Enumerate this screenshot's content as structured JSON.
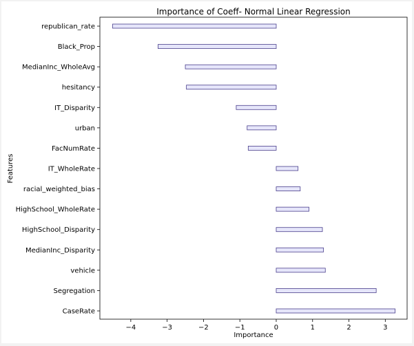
{
  "chart_data": {
    "type": "bar",
    "orientation": "horizontal",
    "title": "Importance of Coeff- Normal Linear Regression",
    "xlabel": "Importance",
    "ylabel": "Features",
    "xlim": [
      -4.85,
      3.6
    ],
    "xticks": [
      -4,
      -3,
      -2,
      -1,
      0,
      1,
      2,
      3
    ],
    "xtick_labels": [
      "−4",
      "−3",
      "−2",
      "−1",
      "0",
      "1",
      "2",
      "3"
    ],
    "grid": false,
    "bar_color": "#e6e6fa",
    "bar_edge_color": "#483d8b",
    "categories": [
      "republican_rate",
      "Black_Prop",
      "MedianInc_WholeAvg",
      "hesitancy",
      "IT_Disparity",
      "urban",
      "FacNumRate",
      "IT_WholeRate",
      "racial_weighted_bias",
      "HighSchool_WholeRate",
      "HighSchool_Disparity",
      "MedianInc_Disparity",
      "vehicle",
      "Segregation",
      "CaseRate"
    ],
    "values": [
      -4.5,
      -3.25,
      -2.5,
      -2.47,
      -1.1,
      -0.8,
      -0.77,
      0.6,
      0.66,
      0.9,
      1.27,
      1.3,
      1.35,
      2.75,
      3.27
    ]
  }
}
